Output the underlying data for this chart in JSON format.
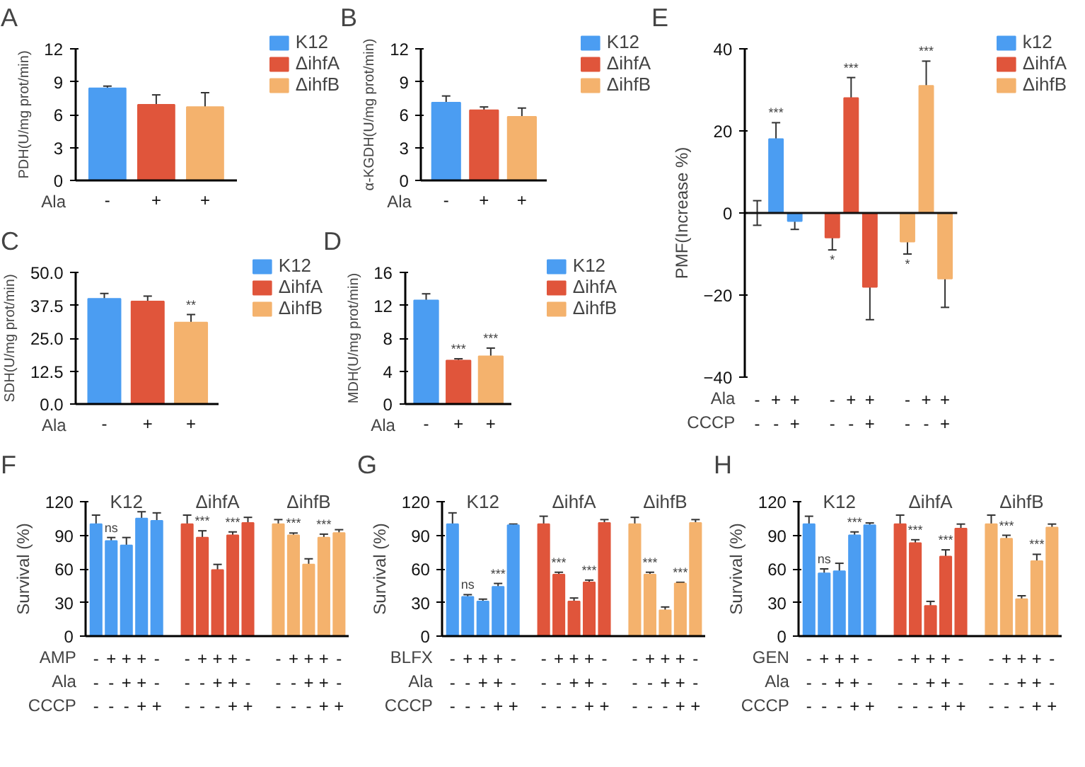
{
  "chart_data": [
    {
      "type": "bar",
      "title": "A",
      "ylabel": "PDH(U/mg prot/min)",
      "categories": [
        "-",
        "+",
        "+"
      ],
      "ylim": [
        0,
        12
      ],
      "yticks": [
        0,
        3,
        6,
        9,
        12
      ],
      "legend": "top right",
      "annotations": [
        "Ala"
      ],
      "series": [
        {
          "name": "K12",
          "color": "#4b9df2",
          "values": [
            8.4,
            null,
            null
          ],
          "errors": [
            0.2,
            null,
            null
          ]
        },
        {
          "name": "ΔihfA",
          "color": "#e0553b",
          "values": [
            null,
            6.9,
            null
          ],
          "errors": [
            null,
            0.9,
            null
          ]
        },
        {
          "name": "ΔihfB",
          "color": "#f4b26d",
          "values": [
            null,
            null,
            6.7
          ],
          "errors": [
            null,
            null,
            1.3
          ]
        }
      ]
    },
    {
      "type": "bar",
      "title": "B",
      "ylabel": "α-KGDH(U/mg prot/min)",
      "categories": [
        "-",
        "+",
        "+"
      ],
      "ylim": [
        0,
        12
      ],
      "yticks": [
        0,
        3,
        6,
        9,
        12
      ],
      "legend": "top right",
      "annotations": [
        "Ala"
      ],
      "series": [
        {
          "name": "K12",
          "color": "#4b9df2",
          "values": [
            7.1,
            null,
            null
          ],
          "errors": [
            0.6,
            null,
            null
          ]
        },
        {
          "name": "ΔihfA",
          "color": "#e0553b",
          "values": [
            null,
            6.4,
            null
          ],
          "errors": [
            null,
            0.3,
            null
          ]
        },
        {
          "name": "ΔihfB",
          "color": "#f4b26d",
          "values": [
            null,
            null,
            5.8
          ],
          "errors": [
            null,
            null,
            0.8
          ]
        }
      ]
    },
    {
      "type": "bar",
      "title": "C",
      "ylabel": "SDH(U/mg prot/min)",
      "categories": [
        "-",
        "+",
        "+"
      ],
      "ylim": [
        0,
        50
      ],
      "yticks": [
        {
          "value": 0,
          "label": "0.0"
        },
        12.5,
        {
          "value": 25,
          "label": "25.0"
        },
        37.5,
        {
          "value": 50,
          "label": "50.0"
        }
      ],
      "legend": "top right",
      "annotations": [
        "Ala"
      ],
      "series": [
        {
          "name": "K12",
          "color": "#4b9df2",
          "values": [
            40,
            null,
            null
          ],
          "errors": [
            2,
            null,
            null
          ]
        },
        {
          "name": "ΔihfA",
          "color": "#e0553b",
          "values": [
            null,
            39,
            null
          ],
          "errors": [
            null,
            2,
            null
          ]
        },
        {
          "name": "ΔihfB",
          "color": "#f4b26d",
          "values": [
            null,
            null,
            31
          ],
          "errors": [
            null,
            null,
            3
          ],
          "value_labels": [
            null,
            null,
            "**"
          ]
        }
      ]
    },
    {
      "type": "bar",
      "title": "D",
      "ylabel": "MDH(U/mg prot/min)",
      "categories": [
        "-",
        "+",
        "+"
      ],
      "ylim": [
        0,
        16
      ],
      "yticks": [
        0,
        4,
        8,
        12,
        16
      ],
      "legend": "top right",
      "annotations": [
        "Ala"
      ],
      "series": [
        {
          "name": "K12",
          "color": "#4b9df2",
          "values": [
            12.6,
            null,
            null
          ],
          "errors": [
            0.8,
            null,
            null
          ]
        },
        {
          "name": "ΔihfA",
          "color": "#e0553b",
          "values": [
            null,
            5.3,
            null
          ],
          "errors": [
            null,
            0.2,
            null
          ],
          "value_labels": [
            null,
            "***",
            null
          ]
        },
        {
          "name": "ΔihfB",
          "color": "#f4b26d",
          "values": [
            null,
            null,
            5.8
          ],
          "errors": [
            null,
            null,
            1
          ],
          "value_labels": [
            null,
            null,
            "***"
          ]
        }
      ]
    },
    {
      "type": "bar",
      "title": "E",
      "ylabel": "PMF(Increase %)",
      "categories": [
        "-\n-",
        "+\n-",
        "+\n+",
        null,
        "-\n-",
        "+\n-",
        "+\n+",
        null,
        "-\n-",
        "+\n-",
        "+\n+"
      ],
      "ylim": [
        -40,
        40
      ],
      "yticks": [
        -40,
        -20,
        0,
        20,
        40
      ],
      "legend": "top right",
      "ref_lines": [
        {
          "axis": "y",
          "value": 0
        }
      ],
      "annotations": [
        "Ala",
        "CCCP"
      ],
      "series": [
        {
          "name": "k12",
          "color": "#4b9df2",
          "values": [
            0,
            18,
            -2,
            null,
            null,
            null,
            null,
            null,
            null,
            null,
            null
          ],
          "errors": [
            3,
            4,
            2,
            null,
            null,
            null,
            null,
            null,
            null,
            null,
            null
          ],
          "value_labels": [
            null,
            "***",
            null,
            null,
            null,
            null,
            null,
            null,
            null,
            null,
            null
          ]
        },
        {
          "name": "ΔihfA",
          "color": "#e0553b",
          "values": [
            null,
            null,
            null,
            null,
            -6,
            28,
            -18,
            null,
            null,
            null,
            null
          ],
          "errors": [
            null,
            null,
            null,
            null,
            3,
            5,
            8,
            null,
            null,
            null,
            null
          ],
          "value_labels": [
            null,
            null,
            null,
            null,
            "*",
            "***",
            null,
            null,
            null,
            null,
            null
          ]
        },
        {
          "name": "ΔihfB",
          "color": "#f4b26d",
          "values": [
            null,
            null,
            null,
            null,
            null,
            null,
            null,
            null,
            -7,
            31,
            -16
          ],
          "errors": [
            null,
            null,
            null,
            null,
            null,
            null,
            null,
            null,
            3,
            6,
            7
          ],
          "value_labels": [
            null,
            null,
            null,
            null,
            null,
            null,
            null,
            null,
            "*",
            "***",
            null
          ]
        }
      ]
    },
    {
      "type": "bar",
      "title": "F",
      "ylabel": "Survival (%)",
      "categories": [
        "-\n-\n-",
        "+\n-\n-",
        "+\n+\n-",
        "+\n+\n+",
        "-\n-\n+",
        null,
        "-\n-\n-",
        "+\n-\n-",
        "+\n+\n-",
        "+\n+\n+",
        "-\n-\n+",
        null,
        "-\n-\n-",
        "+\n-\n-",
        "+\n+\n-",
        "+\n+\n+",
        "-\n-\n+"
      ],
      "ylim": [
        0,
        120
      ],
      "yticks": [
        0,
        30,
        60,
        90,
        120
      ],
      "annotations": [
        "AMP",
        "Ala",
        "CCCP"
      ],
      "series": [
        {
          "name": "K12",
          "color": "#4b9df2",
          "values": [
            100,
            85,
            81,
            105,
            103,
            null,
            null,
            null,
            null,
            null,
            null,
            null,
            null,
            null,
            null,
            null,
            null
          ],
          "errors": [
            8,
            3,
            7,
            6,
            7,
            null,
            null,
            null,
            null,
            null,
            null,
            null,
            null,
            null,
            null,
            null,
            null
          ],
          "value_labels": [
            null,
            "ns",
            null,
            null,
            null,
            null,
            null,
            null,
            null,
            null,
            null,
            null,
            null,
            null,
            null,
            null,
            null
          ]
        },
        {
          "name": "ΔihfA",
          "color": "#e0553b",
          "values": [
            null,
            null,
            null,
            null,
            null,
            null,
            100,
            88,
            59,
            90,
            101,
            null,
            null,
            null,
            null,
            null,
            null
          ],
          "errors": [
            null,
            null,
            null,
            null,
            null,
            null,
            8,
            6,
            5,
            3,
            5,
            null,
            null,
            null,
            null,
            null,
            null
          ],
          "value_labels": [
            null,
            null,
            null,
            null,
            null,
            null,
            null,
            "***",
            null,
            "***",
            null,
            null,
            null,
            null,
            null,
            null,
            null
          ]
        },
        {
          "name": "ΔihfB",
          "color": "#f4b26d",
          "values": [
            null,
            null,
            null,
            null,
            null,
            null,
            null,
            null,
            null,
            null,
            null,
            null,
            100,
            90,
            64,
            88,
            92
          ],
          "errors": [
            null,
            null,
            null,
            null,
            null,
            null,
            null,
            null,
            null,
            null,
            null,
            null,
            4,
            2,
            5,
            3,
            3
          ],
          "value_labels": [
            null,
            null,
            null,
            null,
            null,
            null,
            null,
            null,
            null,
            null,
            null,
            null,
            null,
            "***",
            null,
            "***",
            null
          ]
        }
      ]
    },
    {
      "type": "bar",
      "title": "G",
      "ylabel": "Survival (%)",
      "categories": [
        "-\n-\n-",
        "+\n-\n-",
        "+\n+\n-",
        "+\n+\n+",
        "-\n-\n+",
        null,
        "-\n-\n-",
        "+\n-\n-",
        "+\n+\n-",
        "+\n+\n+",
        "-\n-\n+",
        null,
        "-\n-\n-",
        "+\n-\n-",
        "+\n+\n-",
        "+\n+\n+",
        "-\n-\n+"
      ],
      "ylim": [
        0,
        120
      ],
      "yticks": [
        0,
        30,
        60,
        90,
        120
      ],
      "annotations": [
        "BLFX",
        "Ala",
        "CCCP"
      ],
      "series": [
        {
          "name": "K12",
          "color": "#4b9df2",
          "values": [
            100,
            35,
            31,
            44,
            99,
            null,
            null,
            null,
            null,
            null,
            null,
            null,
            null,
            null,
            null,
            null,
            null
          ],
          "errors": [
            10,
            2,
            2,
            3,
            1,
            null,
            null,
            null,
            null,
            null,
            null,
            null,
            null,
            null,
            null,
            null,
            null
          ],
          "value_labels": [
            null,
            "ns",
            null,
            "***",
            null,
            null,
            null,
            null,
            null,
            null,
            null,
            null,
            null,
            null,
            null,
            null,
            null
          ]
        },
        {
          "name": "ΔihfA",
          "color": "#e0553b",
          "values": [
            null,
            null,
            null,
            null,
            null,
            null,
            100,
            55,
            31,
            48,
            101,
            null,
            null,
            null,
            null,
            null,
            null
          ],
          "errors": [
            null,
            null,
            null,
            null,
            null,
            null,
            7,
            2,
            3,
            2,
            3,
            null,
            null,
            null,
            null,
            null,
            null
          ],
          "value_labels": [
            null,
            null,
            null,
            null,
            null,
            null,
            null,
            "***",
            null,
            "***",
            null,
            null,
            null,
            null,
            null,
            null,
            null
          ]
        },
        {
          "name": "ΔihfB",
          "color": "#f4b26d",
          "values": [
            null,
            null,
            null,
            null,
            null,
            null,
            null,
            null,
            null,
            null,
            null,
            null,
            100,
            55,
            23,
            47,
            101
          ],
          "errors": [
            null,
            null,
            null,
            null,
            null,
            null,
            null,
            null,
            null,
            null,
            null,
            null,
            6,
            2,
            3,
            1,
            3
          ],
          "value_labels": [
            null,
            null,
            null,
            null,
            null,
            null,
            null,
            null,
            null,
            null,
            null,
            null,
            null,
            "***",
            null,
            "***",
            null
          ]
        }
      ]
    },
    {
      "type": "bar",
      "title": "H",
      "ylabel": "Survival (%)",
      "categories": [
        "-\n-\n-",
        "+\n-\n-",
        "+\n+\n-",
        "+\n+\n+",
        "-\n-\n+",
        null,
        "-\n-\n-",
        "+\n-\n-",
        "+\n+\n-",
        "+\n+\n+",
        "-\n-\n+",
        null,
        "-\n-\n-",
        "+\n-\n-",
        "+\n+\n-",
        "+\n+\n+",
        "-\n-\n+"
      ],
      "ylim": [
        0,
        120
      ],
      "yticks": [
        0,
        30,
        60,
        90,
        120
      ],
      "annotations": [
        "GEN",
        "Ala",
        "CCCP"
      ],
      "series": [
        {
          "name": "K12",
          "color": "#4b9df2",
          "values": [
            100,
            56,
            58,
            90,
            99,
            null,
            null,
            null,
            null,
            null,
            null,
            null,
            null,
            null,
            null,
            null,
            null
          ],
          "errors": [
            7,
            4,
            7,
            3,
            2,
            null,
            null,
            null,
            null,
            null,
            null,
            null,
            null,
            null,
            null,
            null,
            null
          ],
          "value_labels": [
            null,
            "ns",
            null,
            "***",
            null,
            null,
            null,
            null,
            null,
            null,
            null,
            null,
            null,
            null,
            null,
            null,
            null
          ]
        },
        {
          "name": "ΔihfA",
          "color": "#e0553b",
          "values": [
            null,
            null,
            null,
            null,
            null,
            null,
            100,
            83,
            27,
            71,
            96,
            null,
            null,
            null,
            null,
            null,
            null
          ],
          "errors": [
            null,
            null,
            null,
            null,
            null,
            null,
            8,
            3,
            4,
            6,
            4,
            null,
            null,
            null,
            null,
            null,
            null
          ],
          "value_labels": [
            null,
            null,
            null,
            null,
            null,
            null,
            null,
            "***",
            null,
            "***",
            null,
            null,
            null,
            null,
            null,
            null,
            null
          ]
        },
        {
          "name": "ΔihfB",
          "color": "#f4b26d",
          "values": [
            null,
            null,
            null,
            null,
            null,
            null,
            null,
            null,
            null,
            null,
            null,
            null,
            100,
            87,
            33,
            67,
            97
          ],
          "errors": [
            null,
            null,
            null,
            null,
            null,
            null,
            null,
            null,
            null,
            null,
            null,
            null,
            8,
            3,
            3,
            6,
            3
          ],
          "value_labels": [
            null,
            null,
            null,
            null,
            null,
            null,
            null,
            null,
            null,
            null,
            null,
            null,
            null,
            "***",
            null,
            "***",
            null
          ]
        }
      ]
    }
  ]
}
